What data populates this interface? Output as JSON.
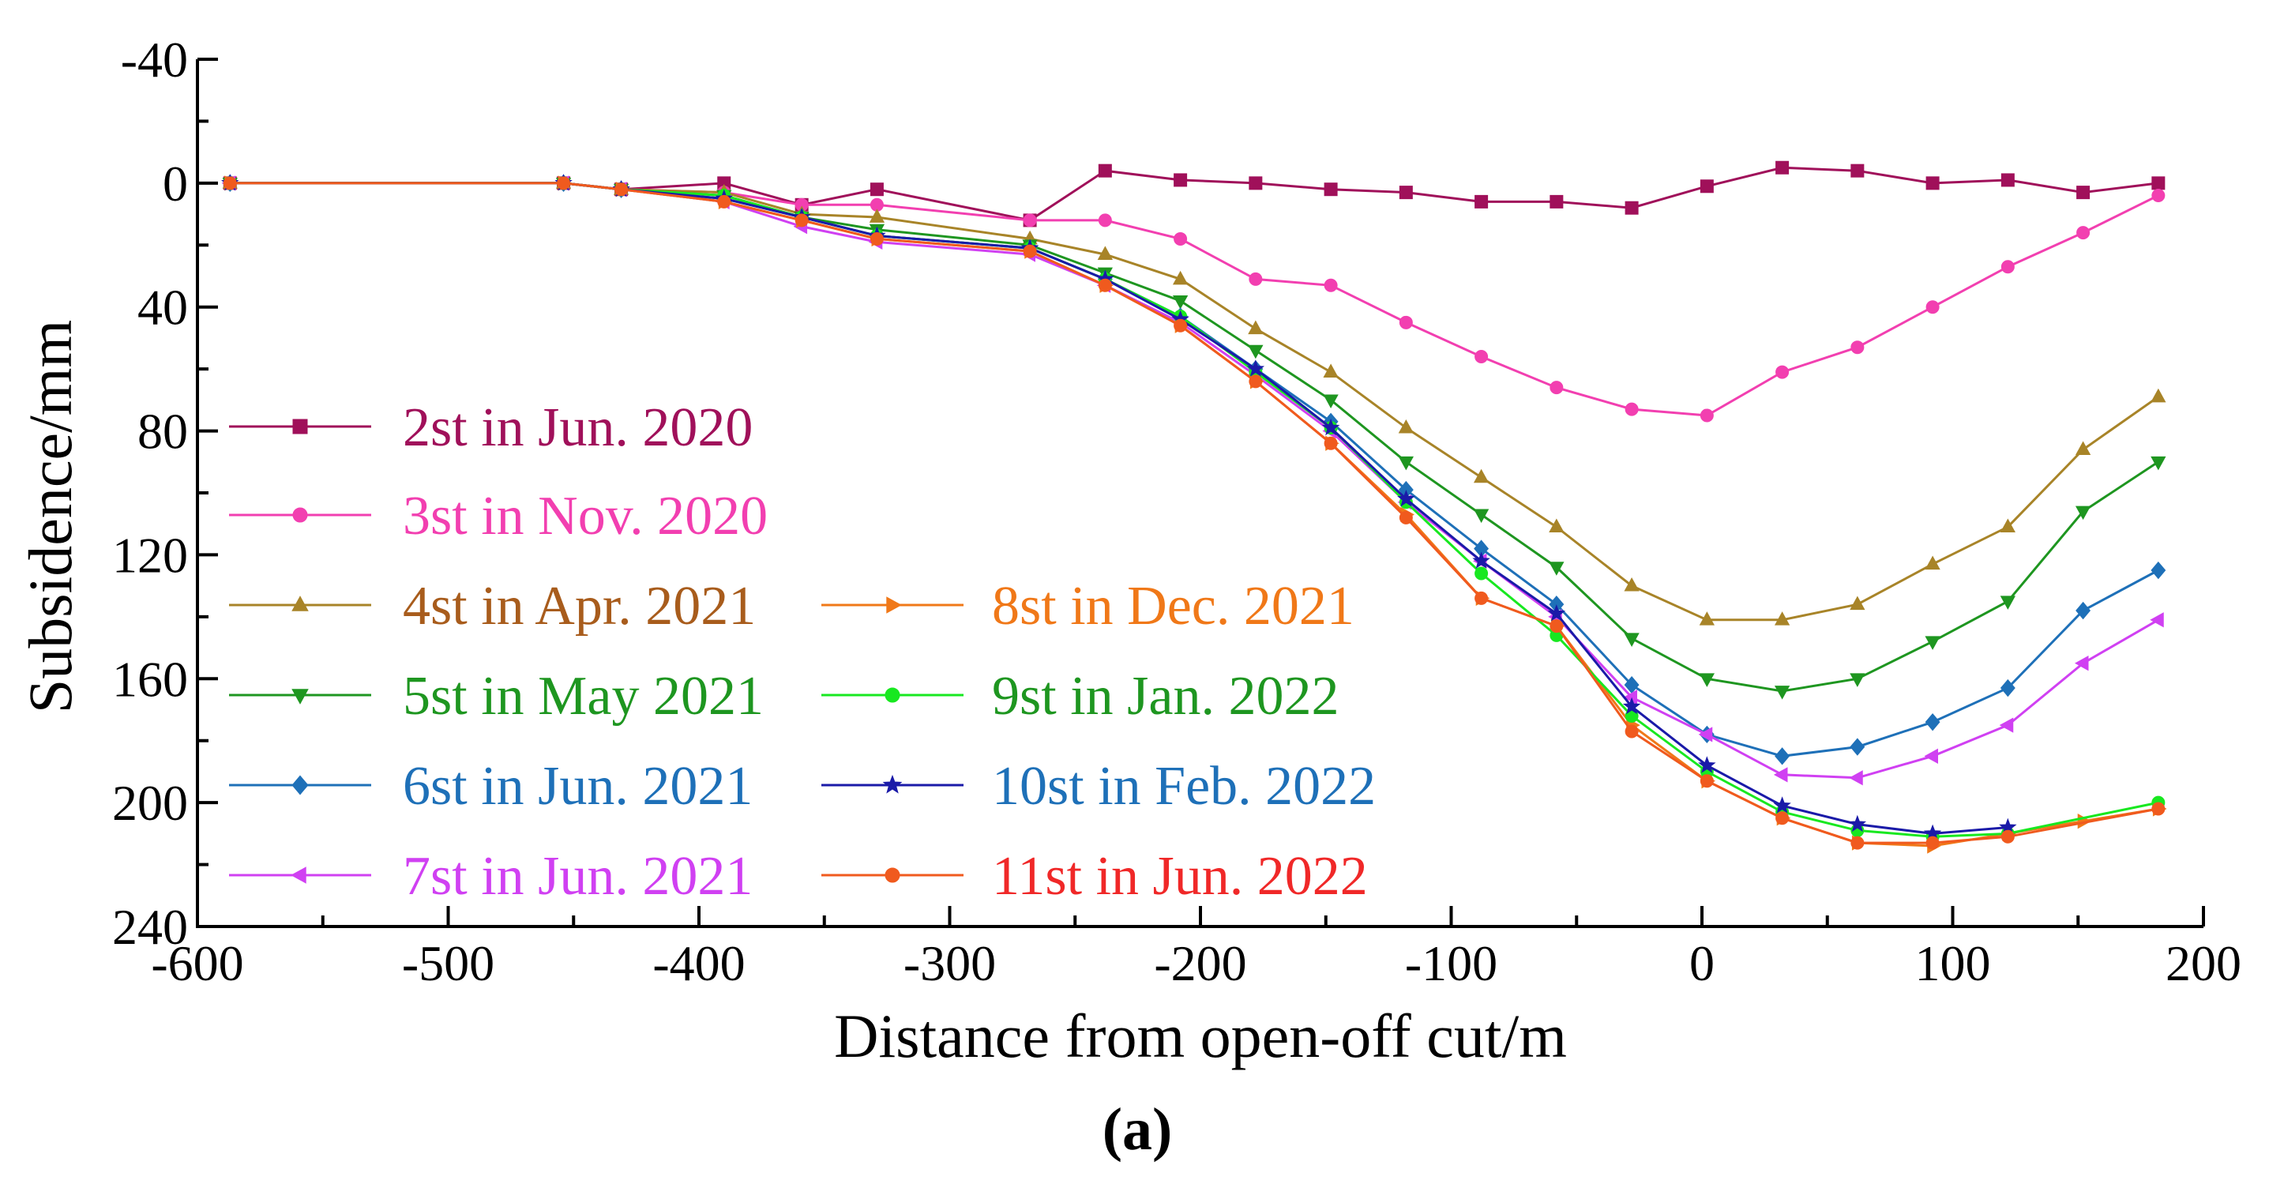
{
  "chart_data": {
    "type": "line",
    "title": "",
    "caption": "(a)",
    "xlabel": "Distance from open-off cut/m",
    "ylabel": "Subsidence/mm",
    "xlim": [
      -600,
      200
    ],
    "ylim": [
      -40,
      240
    ],
    "y_inverted": true,
    "x_ticks": [
      -600,
      -500,
      -400,
      -300,
      -200,
      -100,
      0,
      100,
      200
    ],
    "x_tick_labels": [
      "-600",
      "-500",
      "-400",
      "-300",
      "-200",
      "-100",
      "0",
      "100",
      "200"
    ],
    "y_ticks": [
      -40,
      0,
      40,
      80,
      120,
      160,
      200,
      240
    ],
    "y_tick_labels": [
      "-40",
      "0",
      "40",
      "80",
      "120",
      "160",
      "200",
      "240"
    ],
    "grid": false,
    "legend_position": "left",
    "series": [
      {
        "name": "2st in Jun. 2020",
        "color": "#A0105A",
        "marker": "square",
        "x": [
          -587,
          -454,
          -431,
          -390,
          -359,
          -329,
          -268,
          -238,
          -208,
          -178,
          -148,
          -118,
          -88,
          -58,
          -28,
          2,
          32,
          62,
          92,
          122,
          152,
          182
        ],
        "y": [
          0,
          0,
          2,
          0,
          7,
          2,
          12,
          -4,
          -1,
          0,
          2,
          3,
          6,
          6,
          8,
          1,
          -5,
          -4,
          0,
          -1,
          3,
          0
        ]
      },
      {
        "name": "3st in Nov. 2020",
        "color": "#F23FB0",
        "marker": "circle",
        "x": [
          -587,
          -454,
          -431,
          -390,
          -359,
          -329,
          -268,
          -238,
          -208,
          -178,
          -148,
          -118,
          -88,
          -58,
          -28,
          2,
          32,
          62,
          92,
          122,
          152,
          182
        ],
        "y": [
          0,
          0,
          2,
          3,
          7,
          7,
          12,
          12,
          18,
          31,
          33,
          45,
          56,
          66,
          73,
          75,
          61,
          53,
          40,
          27,
          16,
          4
        ]
      },
      {
        "name": "4st in Apr. 2021",
        "color": "#A88428",
        "marker": "triangle-up",
        "x": [
          -587,
          -454,
          -431,
          -390,
          -359,
          -329,
          -268,
          -238,
          -208,
          -178,
          -148,
          -118,
          -88,
          -58,
          -28,
          2,
          32,
          62,
          92,
          122,
          152,
          182
        ],
        "y": [
          0,
          0,
          2,
          3,
          10,
          11,
          18,
          23,
          31,
          47,
          61,
          79,
          95,
          111,
          130,
          141,
          141,
          136,
          123,
          111,
          86,
          69
        ]
      },
      {
        "name": "5st in May 2021",
        "color": "#1E9620",
        "marker": "triangle-down",
        "x": [
          -587,
          -454,
          -431,
          -390,
          -359,
          -329,
          -268,
          -238,
          -208,
          -178,
          -148,
          -118,
          -88,
          -58,
          -28,
          2,
          32,
          62,
          92,
          122,
          152,
          182
        ],
        "y": [
          0,
          0,
          2,
          4,
          11,
          15,
          20,
          29,
          38,
          54,
          70,
          90,
          107,
          124,
          147,
          160,
          164,
          160,
          148,
          135,
          106,
          90
        ]
      },
      {
        "name": "6st in Jun. 2021",
        "color": "#1E70B8",
        "marker": "diamond",
        "x": [
          -587,
          -454,
          -431,
          -390,
          -359,
          -329,
          -268,
          -238,
          -208,
          -178,
          -148,
          -118,
          -88,
          -58,
          -28,
          2,
          32,
          62,
          92,
          122,
          152,
          182
        ],
        "y": [
          0,
          0,
          2,
          5,
          11,
          17,
          21,
          31,
          43,
          60,
          77,
          99,
          118,
          136,
          162,
          178,
          185,
          182,
          174,
          163,
          138,
          125
        ]
      },
      {
        "name": "7st in Jun. 2021",
        "color": "#D040F2",
        "marker": "triangle-left",
        "x": [
          -587,
          -454,
          -431,
          -390,
          -359,
          -329,
          -268,
          -238,
          -208,
          -178,
          -148,
          -118,
          -88,
          -58,
          -28,
          2,
          32,
          62,
          92,
          122,
          152,
          182
        ],
        "y": [
          0,
          0,
          2,
          6,
          14,
          19,
          23,
          33,
          45,
          62,
          80,
          103,
          122,
          140,
          166,
          178,
          191,
          192,
          185,
          175,
          155,
          141
        ]
      },
      {
        "name": "8st in Dec. 2021",
        "color": "#F07818",
        "marker": "triangle-right",
        "x": [
          -587,
          -454,
          -431,
          -390,
          -359,
          -329,
          -268,
          -238,
          -208,
          -178,
          -148,
          -118,
          -88,
          -58,
          -28,
          2,
          32,
          62,
          92,
          122,
          152,
          182
        ],
        "y": [
          0,
          0,
          2,
          6,
          12,
          18,
          22,
          33,
          46,
          64,
          84,
          107,
          134,
          143,
          175,
          193,
          205,
          213,
          214,
          210,
          206,
          202
        ]
      },
      {
        "name": "9st in Jan. 2022",
        "color": "#18E820",
        "marker": "circle",
        "x": [
          -587,
          -454,
          -431,
          -390,
          -359,
          -329,
          -268,
          -238,
          -208,
          -178,
          -148,
          -118,
          -88,
          -58,
          -28,
          2,
          32,
          62,
          92,
          122,
          182
        ],
        "y": [
          0,
          0,
          2,
          4,
          11,
          17,
          21,
          31,
          43,
          61,
          79,
          103,
          126,
          146,
          172,
          190,
          203,
          209,
          211,
          210,
          200
        ]
      },
      {
        "name": "10st in Feb. 2022",
        "color": "#1A1AA8",
        "marker": "star",
        "x": [
          -587,
          -454,
          -431,
          -390,
          -359,
          -329,
          -268,
          -238,
          -208,
          -178,
          -148,
          -118,
          -88,
          -58,
          -28,
          2,
          32,
          62,
          92,
          122
        ],
        "y": [
          0,
          0,
          2,
          5,
          11,
          17,
          21,
          31,
          44,
          60,
          79,
          102,
          122,
          139,
          169,
          188,
          201,
          207,
          210,
          208
        ]
      },
      {
        "name": "11st in Jun. 2022",
        "color": "#F05A1E",
        "marker": "circle",
        "x": [
          -587,
          -454,
          -431,
          -390,
          -359,
          -329,
          -268,
          -238,
          -208,
          -178,
          -148,
          -118,
          -88,
          -58,
          -28,
          2,
          32,
          62,
          92,
          122,
          182
        ],
        "y": [
          0,
          0,
          2,
          6,
          12,
          18,
          22,
          33,
          46,
          64,
          84,
          108,
          134,
          143,
          177,
          193,
          205,
          213,
          213,
          211,
          202
        ]
      }
    ],
    "legend_text_colors": [
      "#A0105A",
      "#F23FB0",
      "#A85C1C",
      "#1E9620",
      "#1E70B8",
      "#D040F2",
      "#F07818",
      "#1E9620",
      "#1E70B8",
      "#F02828"
    ]
  }
}
